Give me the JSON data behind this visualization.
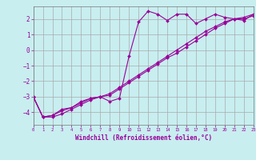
{
  "background_color": "#c8eef0",
  "grid_color": "#aaaaaa",
  "line_color": "#990099",
  "marker_color": "#990099",
  "xlabel": "Windchill (Refroidissement éolien,°C)",
  "ylabel": "",
  "xlim": [
    0,
    23
  ],
  "ylim": [
    -4.8,
    2.8
  ],
  "yticks": [
    -4,
    -3,
    -2,
    -1,
    0,
    1,
    2
  ],
  "xticks": [
    0,
    1,
    2,
    3,
    4,
    5,
    6,
    7,
    8,
    9,
    10,
    11,
    12,
    13,
    14,
    15,
    16,
    17,
    18,
    19,
    20,
    21,
    22,
    23
  ],
  "series": [
    {
      "x": [
        0,
        1,
        2,
        3,
        4,
        5,
        6,
        7,
        8,
        9,
        10,
        11,
        12,
        13,
        14,
        15,
        16,
        17,
        18,
        19,
        20,
        21,
        22,
        23
      ],
      "y": [
        -3.0,
        -4.3,
        -4.2,
        -3.8,
        -3.7,
        -3.3,
        -3.1,
        -3.0,
        -3.3,
        -3.1,
        -0.4,
        1.8,
        2.5,
        2.3,
        1.9,
        2.3,
        2.3,
        1.7,
        2.0,
        2.3,
        2.1,
        2.0,
        1.9,
        2.3
      ]
    },
    {
      "x": [
        0,
        1,
        2,
        3,
        4,
        5,
        6,
        7,
        8,
        9,
        10,
        11,
        12,
        13,
        14,
        15,
        16,
        17,
        18,
        19,
        20,
        21,
        22,
        23
      ],
      "y": [
        -3.0,
        -4.3,
        -4.3,
        -4.1,
        -3.8,
        -3.5,
        -3.2,
        -3.0,
        -2.9,
        -2.5,
        -2.1,
        -1.7,
        -1.3,
        -0.9,
        -0.5,
        -0.2,
        0.2,
        0.6,
        1.0,
        1.4,
        1.7,
        2.0,
        2.0,
        2.2
      ]
    },
    {
      "x": [
        0,
        1,
        2,
        3,
        4,
        5,
        6,
        7,
        8,
        9,
        10,
        11,
        12,
        13,
        14,
        15,
        16,
        17,
        18,
        19,
        20,
        21,
        22,
        23
      ],
      "y": [
        -3.0,
        -4.3,
        -4.2,
        -3.9,
        -3.7,
        -3.4,
        -3.1,
        -3.0,
        -2.8,
        -2.4,
        -2.0,
        -1.6,
        -1.2,
        -0.8,
        -0.4,
        -0.0,
        0.4,
        0.8,
        1.2,
        1.5,
        1.8,
        2.0,
        2.1,
        2.3
      ]
    }
  ]
}
